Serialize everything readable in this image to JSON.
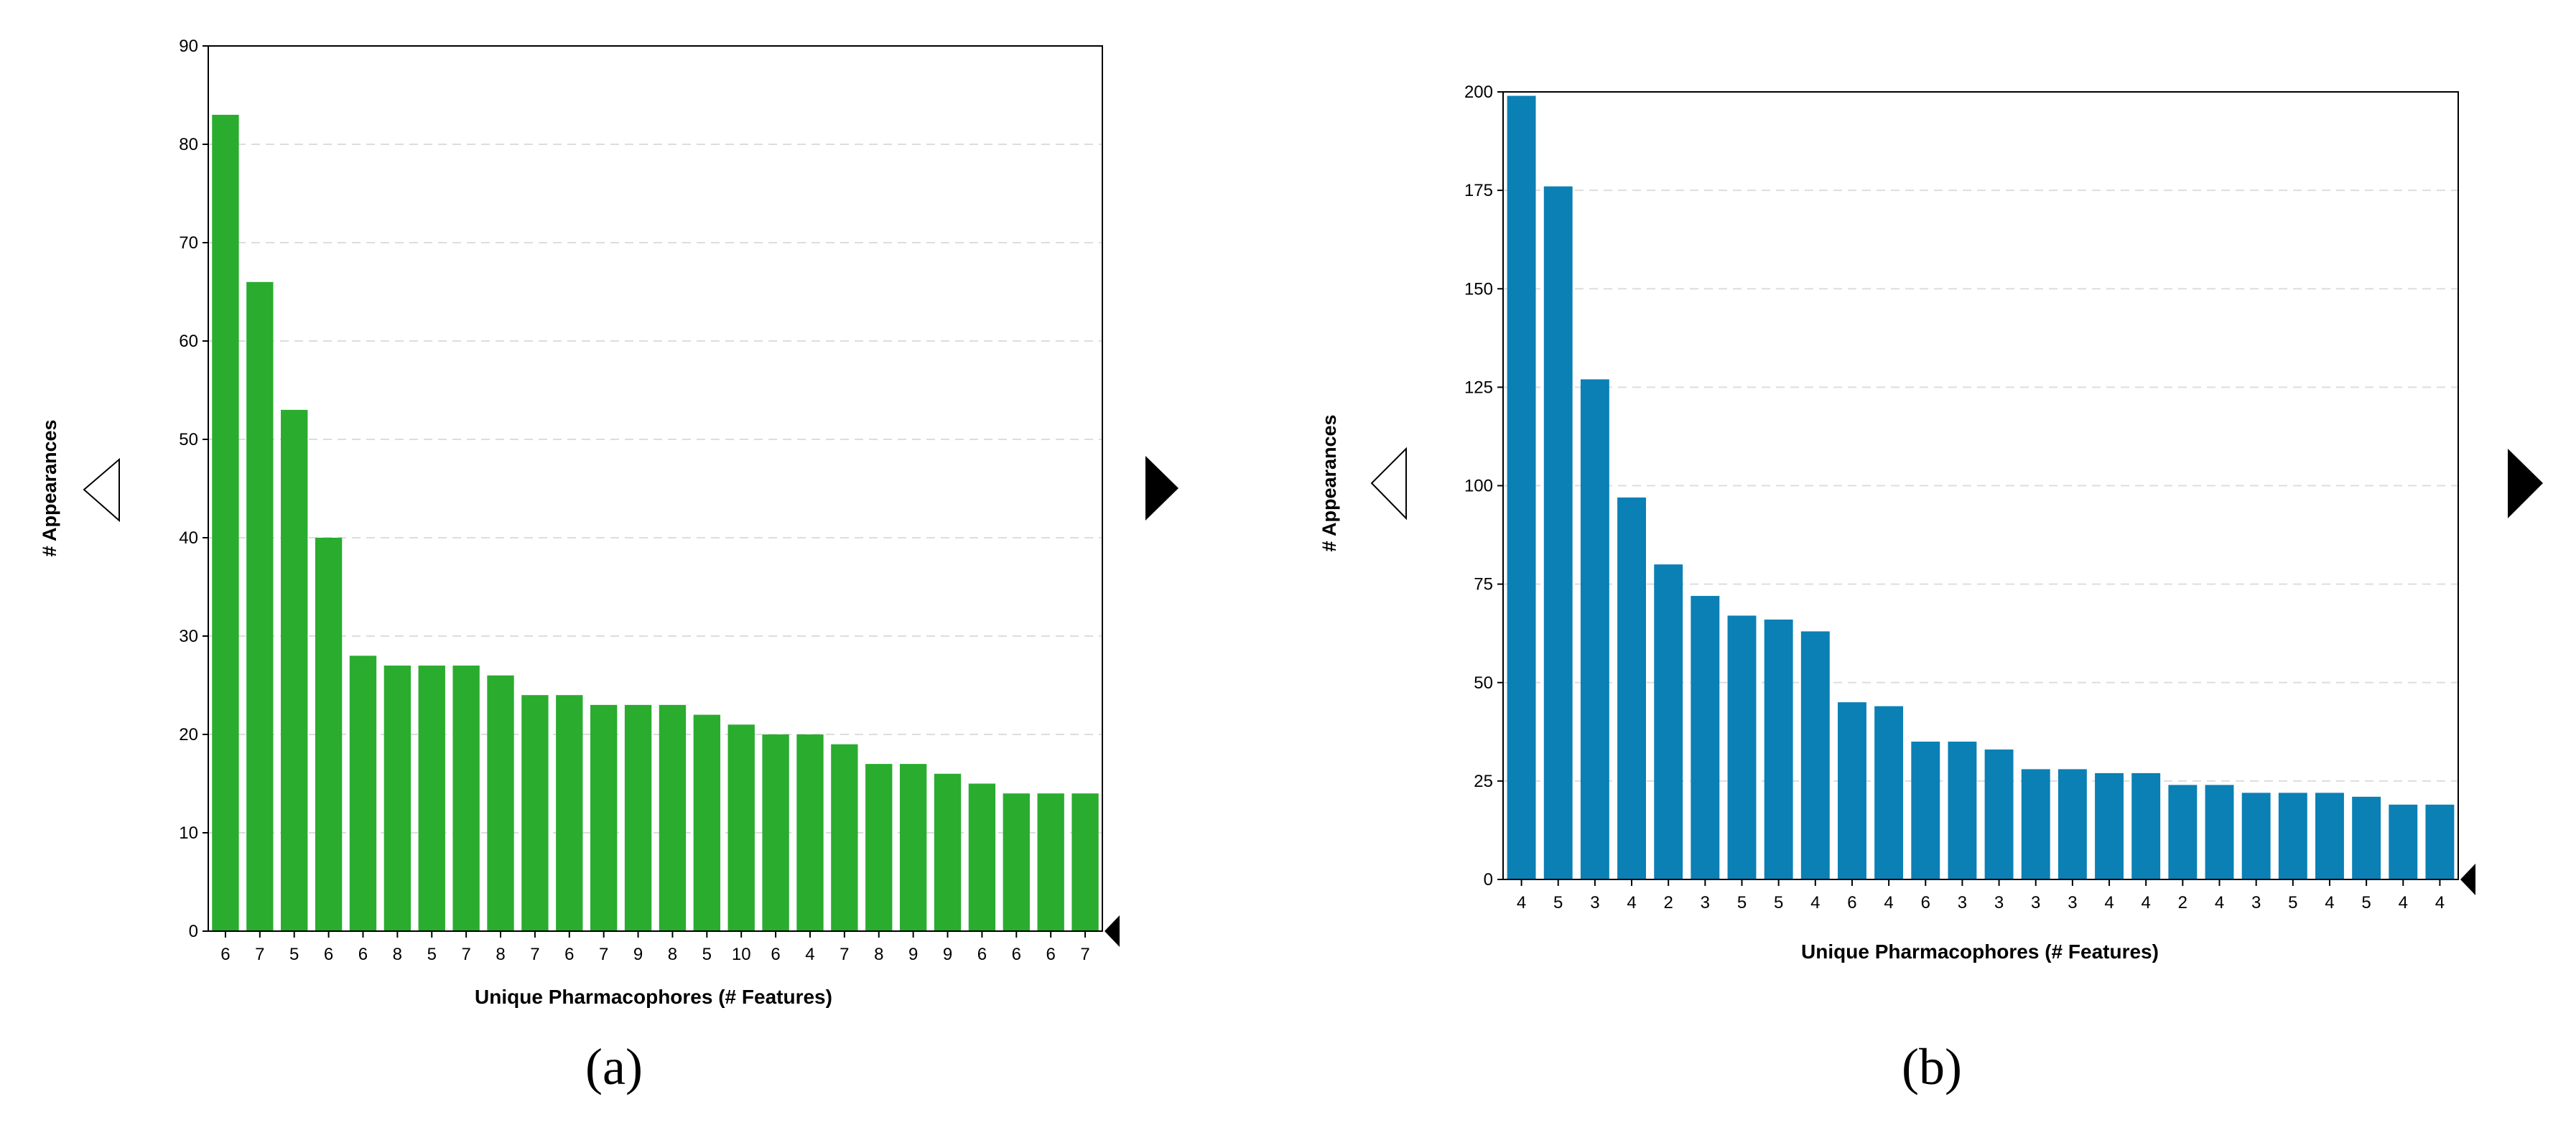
{
  "chart_data": [
    {
      "type": "bar",
      "panel_label": "(a)",
      "xlabel": "Unique Pharmacophores (# Features)",
      "ylabel": "# Appearances",
      "categories": [
        "6",
        "7",
        "5",
        "6",
        "6",
        "8",
        "5",
        "7",
        "8",
        "7",
        "6",
        "7",
        "9",
        "8",
        "5",
        "10",
        "6",
        "4",
        "7",
        "8",
        "9",
        "9",
        "6",
        "6",
        "6",
        "7"
      ],
      "values": [
        83,
        66,
        53,
        40,
        28,
        27,
        27,
        27,
        26,
        24,
        24,
        23,
        23,
        23,
        22,
        21,
        20,
        20,
        19,
        17,
        17,
        16,
        15,
        14,
        14,
        14
      ],
      "ylim": [
        0,
        90
      ],
      "yticks": [
        0,
        10,
        20,
        30,
        40,
        50,
        60,
        70,
        80,
        90
      ],
      "grid": true,
      "bar_color": "#2aac2f"
    },
    {
      "type": "bar",
      "panel_label": "(b)",
      "xlabel": "Unique Pharmacophores (# Features)",
      "ylabel": "# Appearances",
      "categories": [
        "4",
        "5",
        "3",
        "4",
        "2",
        "3",
        "5",
        "5",
        "4",
        "6",
        "4",
        "6",
        "3",
        "3",
        "3",
        "3",
        "4",
        "4",
        "2",
        "4",
        "3",
        "5",
        "4",
        "5",
        "4",
        "4"
      ],
      "values": [
        199,
        176,
        127,
        97,
        80,
        72,
        67,
        66,
        63,
        45,
        44,
        35,
        35,
        33,
        28,
        28,
        27,
        27,
        24,
        24,
        22,
        22,
        22,
        21,
        19,
        19
      ],
      "ylim": [
        0,
        200
      ],
      "yticks": [
        0,
        25,
        50,
        75,
        100,
        125,
        150,
        175,
        200
      ],
      "grid": true,
      "bar_color": "#0a80b5"
    }
  ],
  "icons": {
    "prev": "chevron-left-outline-icon",
    "next": "chevron-right-filled-icon",
    "axis_marker": "axis-end-marker-icon"
  }
}
